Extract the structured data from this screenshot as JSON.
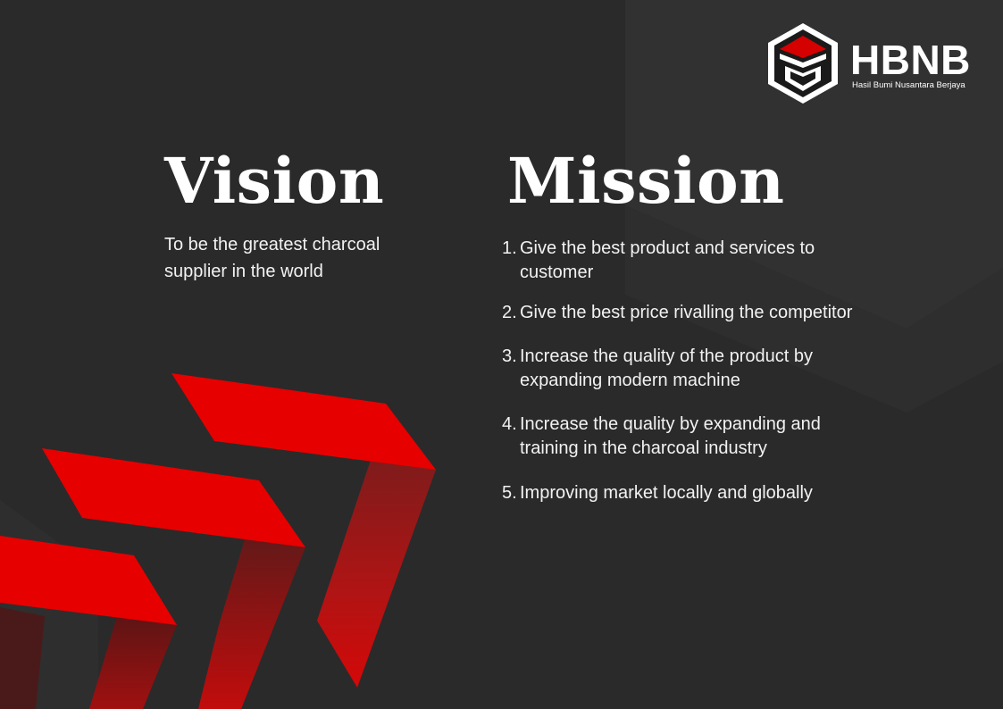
{
  "brand": {
    "name": "HBNB",
    "tagline": "Hasil Bumi Nusantara Berjaya"
  },
  "vision": {
    "heading": "Vision",
    "text": "To be the greatest charcoal supplier in the world"
  },
  "mission": {
    "heading": "Mission",
    "items": [
      {
        "num": "1.",
        "text": "Give the best product and services to customer"
      },
      {
        "num": "2.",
        "text": "Give the best price rivalling the competitor"
      },
      {
        "num": "3.",
        "text": "Increase the quality of the product by expanding modern machine"
      },
      {
        "num": "4.",
        "text": "Increase the quality by expanding and training in the charcoal industry"
      },
      {
        "num": "5.",
        "text": "Improving market locally and globally"
      }
    ]
  },
  "colors": {
    "background": "#2a2a2a",
    "accent_red": "#e60000",
    "dark_red": "#6b1a1a",
    "text": "#ffffff"
  }
}
